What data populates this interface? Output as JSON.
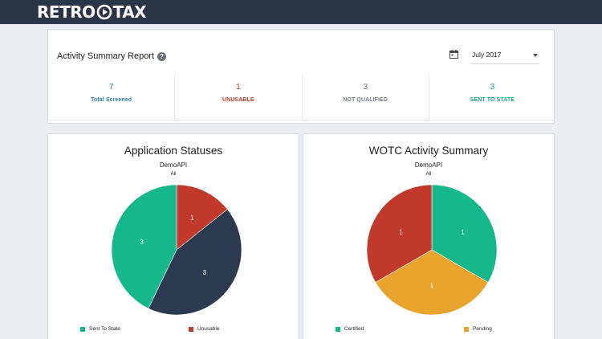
{
  "header": {
    "logo_left": "RETRO",
    "logo_right": "TAX"
  },
  "summary": {
    "title": "Activity Summary Report",
    "help_symbol": "?",
    "month_value": "July 2017",
    "stats": [
      {
        "value": "7",
        "label": "Total Screened",
        "color": "#2a7ab8"
      },
      {
        "value": "1",
        "label": "UNUSABLE",
        "color": "#c0392b"
      },
      {
        "value": "3",
        "label": "NOT QUALIFIED",
        "color": "#7a7f86"
      },
      {
        "value": "3",
        "label": "SENT TO STATE",
        "color": "#1aa88a"
      }
    ]
  },
  "charts": [
    {
      "title": "Application Statuses",
      "subtitle": "DemoAPI",
      "subtitle2": "All",
      "legend": [
        {
          "label": "Sent To State",
          "color": "#17b78c"
        },
        {
          "label": "Unusable",
          "color": "#c0392b"
        }
      ]
    },
    {
      "title": "WOTC Activity Summary",
      "subtitle": "DemoAPI",
      "subtitle2": "All",
      "legend": [
        {
          "label": "Certified",
          "color": "#17b78c"
        },
        {
          "label": "Pending",
          "color": "#e8a42c"
        }
      ]
    }
  ],
  "chart_data": [
    {
      "type": "pie",
      "title": "Application Statuses",
      "subtitle": "DemoAPI",
      "slices": [
        {
          "label": "Unusable",
          "value": 1,
          "color": "#c0392b"
        },
        {
          "label": "",
          "value": 3,
          "color": "#2b3a4f"
        },
        {
          "label": "Sent To State",
          "value": 3,
          "color": "#17b78c"
        }
      ],
      "legend_position": "bottom"
    },
    {
      "type": "pie",
      "title": "WOTC Activity Summary",
      "subtitle": "DemoAPI",
      "slices": [
        {
          "label": "Certified",
          "value": 1,
          "color": "#17b78c"
        },
        {
          "label": "Pending",
          "value": 1,
          "color": "#e8a42c"
        },
        {
          "label": "",
          "value": 1,
          "color": "#c0392b"
        }
      ],
      "legend_position": "bottom"
    }
  ]
}
